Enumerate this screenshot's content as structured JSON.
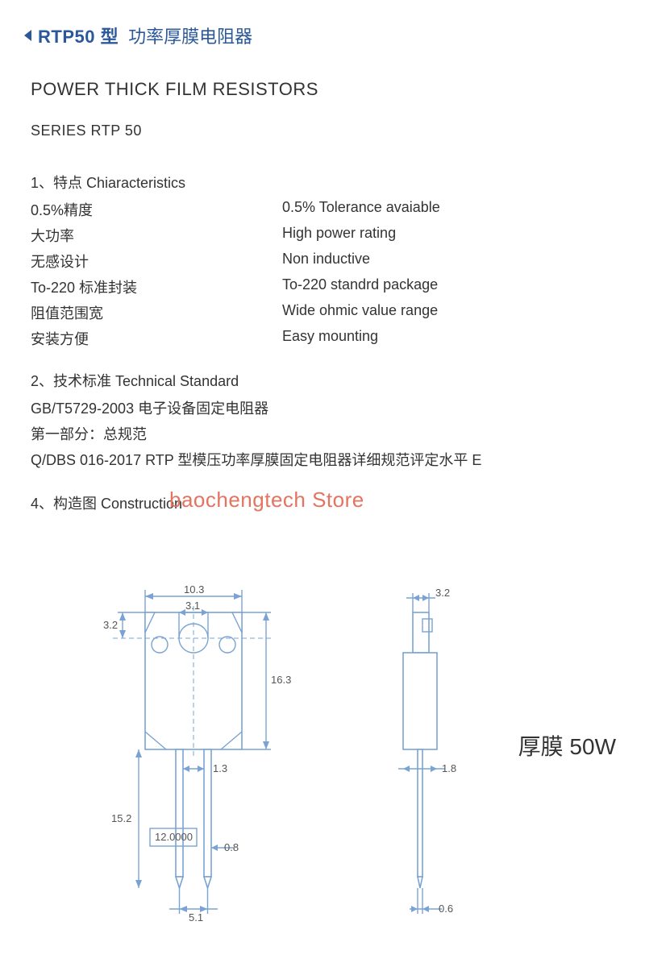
{
  "header": {
    "model": "RTP50 型",
    "desc": "功率厚膜电阻器"
  },
  "title_en": "POWER THICK FILM RESISTORS",
  "series": "SERIES RTP 50",
  "section1": {
    "heading": "1、特点 Chiaracteristics",
    "rows": [
      {
        "cn": "0.5%精度",
        "en": "0.5% Tolerance avaiable"
      },
      {
        "cn": "大功率",
        "en": "High power rating"
      },
      {
        "cn": "无感设计",
        "en": "Non inductive"
      },
      {
        "cn": "To-220 标准封装",
        "en": "To-220 standrd package"
      },
      {
        "cn": "阻值范围宽",
        "en": "Wide ohmic value range"
      },
      {
        "cn": "安装方便",
        "en": "Easy mounting"
      }
    ]
  },
  "section2": {
    "heading": "2、技术标准 Technical Standard",
    "lines": [
      "GB/T5729-2003  电子设备固定电阻器",
      "第一部分：总规范",
      "Q/DBS 016-2017 RTP 型模压功率厚膜固定电阻器详细规范评定水平 E"
    ]
  },
  "section4": {
    "heading": "4、构造图 Construction"
  },
  "watermark": "baochengtech Store",
  "label_50w": "厚膜 50W",
  "diagram": {
    "line_color": "#7aa3d4",
    "text_color": "#555555",
    "front": {
      "body_w": 10.3,
      "body_h": 16.3,
      "hole_d": 3.1,
      "hole_from_top": 3.2,
      "pin_spacing": 5.1,
      "pin_gap": 1.3,
      "pin_len_outer": 15.2,
      "pin_len": 12.0,
      "pin_w": 0.8
    },
    "side": {
      "body_w": 3.2,
      "tab_w": 1.8,
      "pin_w": 0.6
    },
    "dims_text": {
      "d103": "10.3",
      "d31": "3.1",
      "d32a": "3.2",
      "d163": "16.3",
      "d13": "1.3",
      "d152": "15.2",
      "d120": "12.0000",
      "d08": "0.8",
      "d51": "5.1",
      "d32b": "3.2",
      "d18": "1.8",
      "d06": "0.6"
    }
  }
}
